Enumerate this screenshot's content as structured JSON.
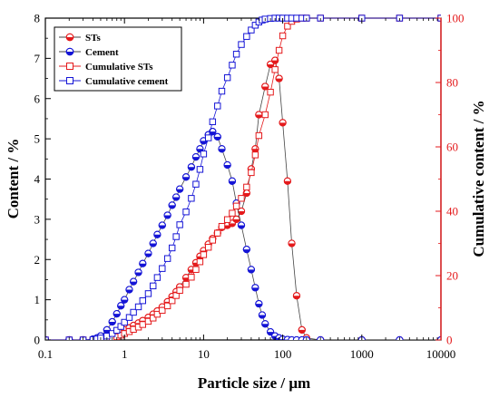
{
  "chart_data": {
    "type": "scatter",
    "xlabel": "Particle size  / μm",
    "ylabel": "Content / %",
    "y2label": "Cumulative content / %",
    "x_scale": "log",
    "xlim": [
      0.1,
      10000
    ],
    "ylim": [
      0,
      8
    ],
    "y2lim": [
      0,
      100
    ],
    "x_ticks": [
      "0.1",
      "1",
      "10",
      "100",
      "1000",
      "10000"
    ],
    "y_ticks": [
      "0",
      "1",
      "2",
      "3",
      "4",
      "5",
      "6",
      "7",
      "8"
    ],
    "y2_ticks": [
      "0",
      "20",
      "40",
      "60",
      "80",
      "100"
    ],
    "legend_position": "top-left",
    "colors": {
      "sts": "#e41a1c",
      "cement": "#1515d6",
      "left_axis": "#000000",
      "right_axis": "#e41a1c"
    },
    "series": [
      {
        "name": "STs",
        "axis": "left",
        "marker": "half-filled-circle",
        "color": "#e41a1c",
        "x": [
          0.1,
          0.2,
          0.3,
          0.4,
          0.5,
          0.6,
          0.7,
          0.8,
          0.9,
          1.0,
          1.15,
          1.3,
          1.5,
          1.7,
          2.0,
          2.3,
          2.6,
          3.0,
          3.5,
          4.0,
          4.5,
          5.0,
          6.0,
          7.0,
          8.0,
          9.0,
          10,
          11.5,
          13,
          15,
          17,
          20,
          23,
          26,
          30,
          35,
          40,
          45,
          50,
          60,
          70,
          80,
          90,
          100,
          115,
          130,
          150,
          175,
          200,
          300,
          1000,
          3000,
          10000
        ],
        "y": [
          0,
          0,
          0,
          0,
          0.02,
          0.05,
          0.1,
          0.15,
          0.2,
          0.25,
          0.3,
          0.36,
          0.42,
          0.48,
          0.56,
          0.64,
          0.72,
          0.82,
          0.95,
          1.08,
          1.2,
          1.32,
          1.55,
          1.75,
          1.92,
          2.08,
          2.22,
          2.38,
          2.52,
          2.66,
          2.8,
          2.85,
          2.9,
          3.0,
          3.2,
          3.65,
          4.25,
          4.75,
          5.6,
          6.3,
          6.85,
          6.95,
          6.5,
          5.4,
          3.95,
          2.4,
          1.1,
          0.25,
          0.05,
          0,
          0,
          0,
          0
        ]
      },
      {
        "name": "Cement",
        "axis": "left",
        "marker": "half-filled-circle",
        "color": "#1515d6",
        "x": [
          0.1,
          0.2,
          0.3,
          0.4,
          0.45,
          0.5,
          0.6,
          0.7,
          0.8,
          0.9,
          1.0,
          1.15,
          1.3,
          1.5,
          1.7,
          2.0,
          2.3,
          2.6,
          3.0,
          3.5,
          4.0,
          4.5,
          5.0,
          6.0,
          7.0,
          8.0,
          9.0,
          10,
          11.5,
          13,
          15,
          17,
          20,
          23,
          26,
          30,
          35,
          40,
          45,
          50,
          55,
          60,
          70,
          80,
          90,
          100,
          115,
          130,
          150,
          175,
          200,
          300,
          1000,
          3000,
          10000
        ],
        "y": [
          0,
          0,
          0,
          0.02,
          0.05,
          0.1,
          0.25,
          0.45,
          0.65,
          0.85,
          1.0,
          1.25,
          1.45,
          1.68,
          1.9,
          2.15,
          2.4,
          2.62,
          2.85,
          3.1,
          3.35,
          3.55,
          3.75,
          4.05,
          4.3,
          4.55,
          4.75,
          4.95,
          5.1,
          5.18,
          5.05,
          4.75,
          4.35,
          3.95,
          3.4,
          2.85,
          2.25,
          1.75,
          1.3,
          0.9,
          0.62,
          0.4,
          0.2,
          0.1,
          0.05,
          0.02,
          0.01,
          0,
          0,
          0,
          0,
          0,
          0,
          0,
          0
        ]
      },
      {
        "name": "Cumulative STs",
        "axis": "right",
        "marker": "open-square",
        "color": "#e41a1c",
        "x": [
          0.1,
          0.2,
          0.3,
          0.4,
          0.5,
          0.6,
          0.7,
          0.8,
          0.9,
          1.0,
          1.15,
          1.3,
          1.5,
          1.7,
          2.0,
          2.3,
          2.6,
          3.0,
          3.5,
          4.0,
          4.5,
          5.0,
          6.0,
          7.0,
          8.0,
          9.0,
          10,
          11.5,
          13,
          15,
          17,
          20,
          23,
          26,
          30,
          35,
          40,
          45,
          50,
          60,
          70,
          80,
          90,
          100,
          115,
          130,
          150,
          175,
          200,
          300,
          1000,
          3000,
          10000
        ],
        "y": [
          0,
          0,
          0,
          0,
          0.1,
          0.3,
          0.6,
          1.0,
          1.5,
          2.0,
          2.6,
          3.3,
          4.0,
          4.8,
          5.8,
          6.8,
          8.0,
          9.2,
          10.6,
          12.2,
          13.8,
          15.4,
          17.3,
          19.5,
          21.9,
          24.3,
          26.5,
          28.8,
          31.0,
          33.2,
          35.3,
          37.4,
          39.4,
          41.6,
          44.0,
          47.5,
          52.0,
          57.5,
          63.5,
          70.0,
          77.0,
          84.0,
          90.0,
          94.5,
          97.5,
          99.0,
          99.7,
          100,
          100,
          100,
          100,
          100,
          100
        ]
      },
      {
        "name": "Cumulative cement",
        "axis": "right",
        "marker": "open-square",
        "color": "#1515d6",
        "x": [
          0.1,
          0.2,
          0.3,
          0.4,
          0.45,
          0.5,
          0.6,
          0.7,
          0.8,
          0.9,
          1.0,
          1.15,
          1.3,
          1.5,
          1.7,
          2.0,
          2.3,
          2.6,
          3.0,
          3.5,
          4.0,
          4.5,
          5.0,
          6.0,
          7.0,
          8.0,
          9.0,
          10,
          11.5,
          13,
          15,
          17,
          20,
          23,
          26,
          30,
          35,
          40,
          45,
          50,
          55,
          60,
          70,
          80,
          90,
          100,
          115,
          130,
          150,
          175,
          200,
          300,
          1000,
          3000,
          10000
        ],
        "y": [
          0,
          0,
          0,
          0.1,
          0.3,
          0.6,
          1.2,
          2.0,
          3.0,
          4.2,
          5.5,
          7.0,
          8.6,
          10.3,
          12.2,
          14.4,
          16.8,
          19.4,
          22.2,
          25.3,
          28.6,
          32.1,
          35.8,
          39.8,
          44.0,
          48.4,
          53.0,
          57.8,
          62.8,
          67.8,
          72.7,
          77.3,
          81.5,
          85.4,
          88.8,
          91.8,
          94.3,
          96.3,
          97.8,
          98.8,
          99.4,
          99.7,
          99.9,
          100,
          100,
          100,
          100,
          100,
          100,
          100,
          100,
          100,
          100,
          100,
          100
        ]
      }
    ]
  }
}
